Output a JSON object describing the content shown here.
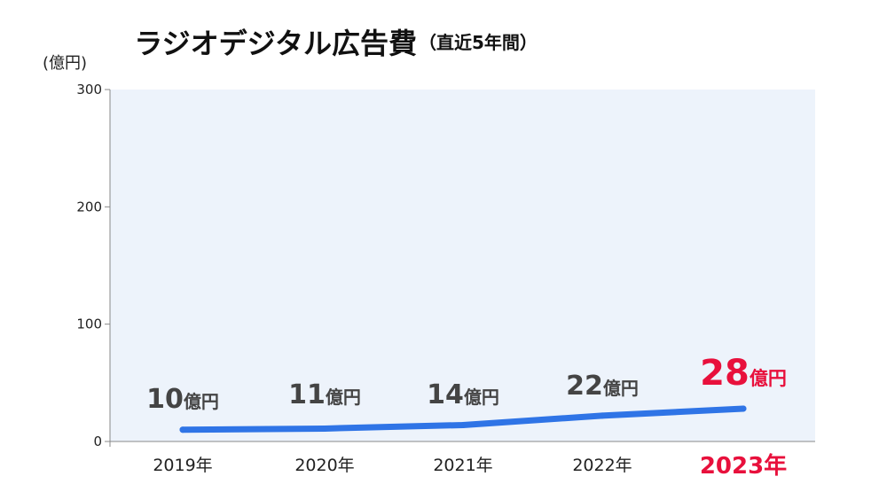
{
  "chart_data": {
    "type": "line",
    "title": "ラジオデジタル広告費",
    "subtitle": "（直近5年間）",
    "ylabel": "(億円)",
    "xlabel": "",
    "categories": [
      "2019年",
      "2020年",
      "2021年",
      "2022年",
      "2023年"
    ],
    "series": [
      {
        "values": [
          10,
          11,
          14,
          22,
          28
        ]
      }
    ],
    "data_labels": [
      {
        "value": "10",
        "unit": "億円"
      },
      {
        "value": "11",
        "unit": "億円"
      },
      {
        "value": "14",
        "unit": "億円"
      },
      {
        "value": "22",
        "unit": "億円"
      },
      {
        "value": "28",
        "unit": "億円"
      }
    ],
    "y_ticks": [
      "0",
      "100",
      "200",
      "300"
    ],
    "ylim": [
      0,
      300
    ],
    "grid": false,
    "highlight_index": 4
  },
  "colors": {
    "line": "#2f74e6",
    "plot_background": "#edf3fb",
    "highlight": "#e8103c",
    "axis": "#888888"
  }
}
